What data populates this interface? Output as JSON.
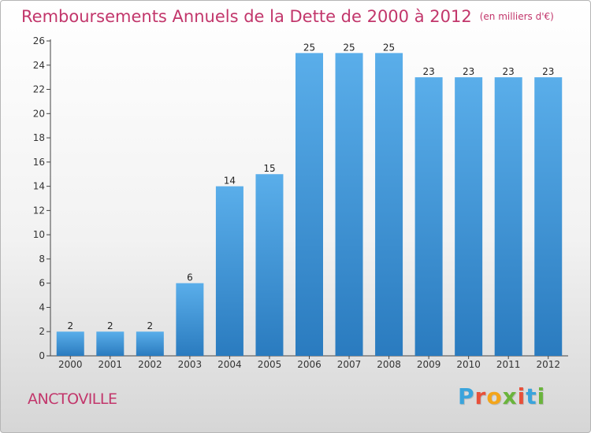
{
  "title": "Remboursements Annuels de la Dette de 2000 à 2012",
  "unit_note": "(en milliers d'€)",
  "commune": "ANCTOVILLE",
  "logo": {
    "text": "Proxiti",
    "letter_colors": [
      "#3aa4dc",
      "#e8503a",
      "#f3a51b",
      "#6ab43c",
      "#e8503a",
      "#3aa4dc",
      "#6ab43c"
    ]
  },
  "colors": {
    "bar_top": "#5aaeea",
    "bar_bottom": "#2a7bbf",
    "title": "#c2366b"
  },
  "chart_data": {
    "type": "bar",
    "title": "Remboursements Annuels de la Dette de 2000 à 2012",
    "categories": [
      "2000",
      "2001",
      "2002",
      "2003",
      "2004",
      "2005",
      "2006",
      "2007",
      "2008",
      "2009",
      "2010",
      "2011",
      "2012"
    ],
    "values": [
      2,
      2,
      2,
      6,
      14,
      15,
      25,
      25,
      25,
      23,
      23,
      23,
      23
    ],
    "ylim": [
      0,
      26
    ],
    "yticks": [
      0,
      2,
      4,
      6,
      8,
      10,
      12,
      14,
      16,
      18,
      20,
      22,
      24,
      26
    ],
    "grid": false,
    "legend": "none"
  }
}
